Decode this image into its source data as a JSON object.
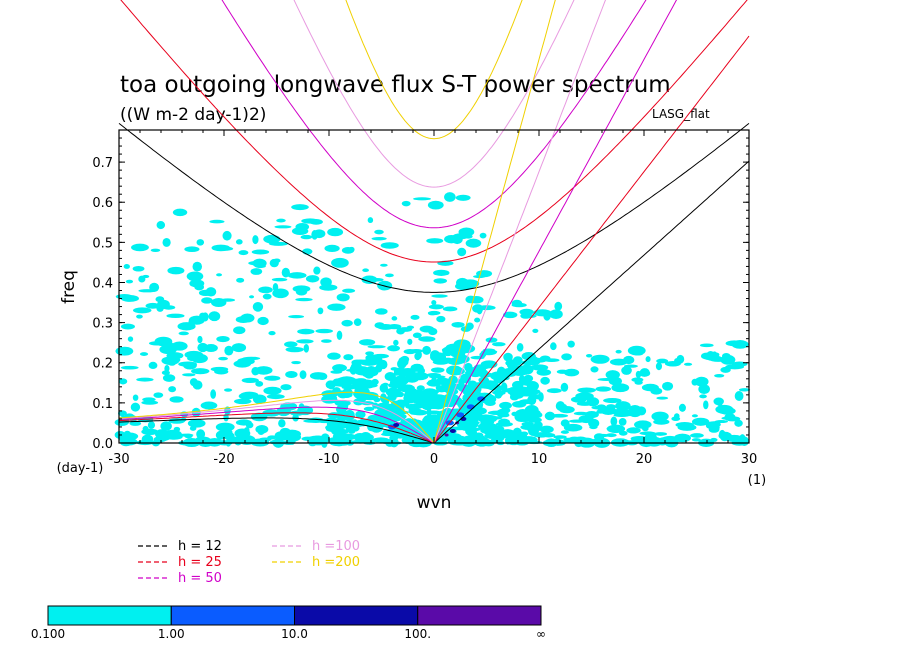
{
  "chart_data": {
    "type": "contour",
    "title": "toa outgoing longwave flux S-T power spectrum",
    "subtitle": "((W m-2 day-1)2)",
    "model_label": "LASG_flat",
    "xlabel": "wvn",
    "ylabel": "freq",
    "x_unit": "(1)",
    "y_unit": "(day-1)",
    "xlim": [
      -30,
      30
    ],
    "ylim": [
      0,
      0.78
    ],
    "x_ticks": [
      "-30",
      "-20",
      "-10",
      "0",
      "10",
      "20",
      "30"
    ],
    "x_tick_values": [
      -30,
      -20,
      -10,
      0,
      10,
      20,
      30
    ],
    "y_ticks": [
      "0.0",
      "0.1",
      "0.2",
      "0.3",
      "0.4",
      "0.5",
      "0.6",
      "0.7"
    ],
    "y_tick_values": [
      0.0,
      0.1,
      0.2,
      0.3,
      0.4,
      0.5,
      0.6,
      0.7
    ],
    "dispersion_curves": [
      {
        "name": "h = 12",
        "h": 12,
        "color": "#000000"
      },
      {
        "name": "h = 25",
        "h": 25,
        "color": "#e8001c"
      },
      {
        "name": "h = 50",
        "h": 50,
        "color": "#d000c8"
      },
      {
        "name": "h =100",
        "h": 100,
        "color": "#e89ae0"
      },
      {
        "name": "h =200",
        "h": 200,
        "color": "#f0d000"
      }
    ],
    "contour_levels": [
      "0.100",
      "1.00",
      "10.0",
      "100.",
      "∞"
    ],
    "contour_colors": [
      "#00f0f0",
      "#0a5cff",
      "#0a0aa8",
      "#5a0aa8"
    ]
  }
}
